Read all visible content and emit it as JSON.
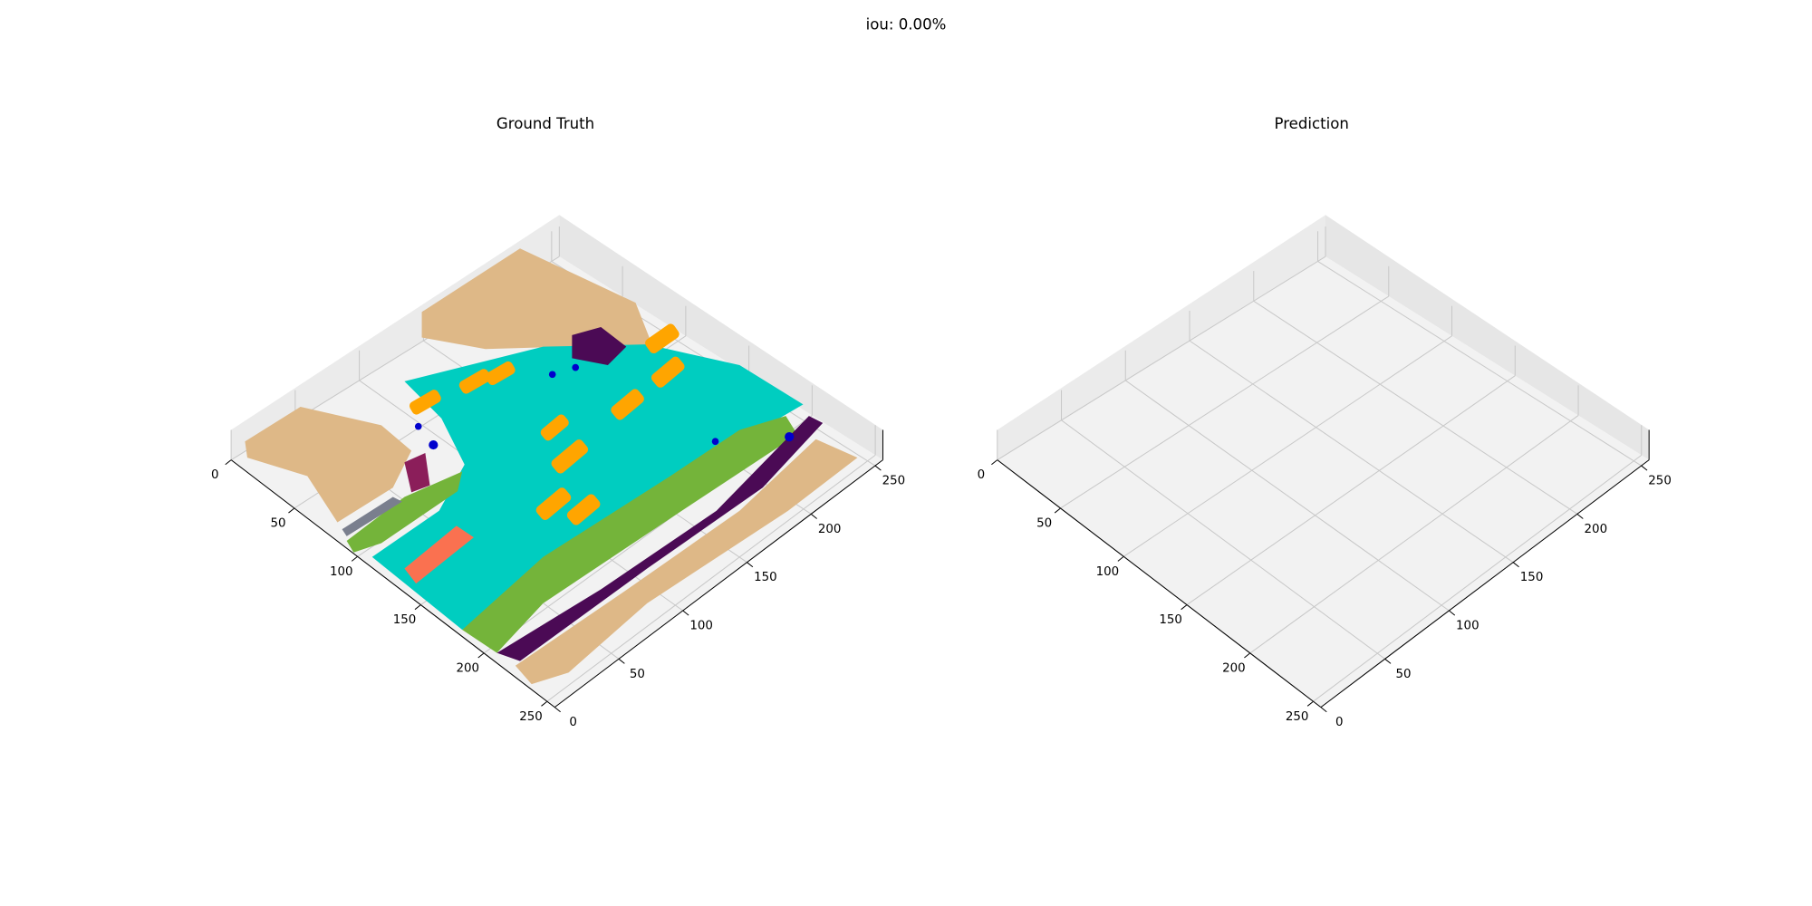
{
  "title": "iou: 0.00%",
  "chart_data": [
    {
      "type": "voxel3d",
      "title": "Ground Truth",
      "xlim": [
        0,
        256
      ],
      "ylim": [
        0,
        256
      ],
      "xticks": [
        0,
        50,
        100,
        150,
        200,
        250
      ],
      "yticks": [
        0,
        50,
        100,
        150,
        200,
        250
      ],
      "grid": true
    },
    {
      "type": "voxel3d",
      "title": "Prediction",
      "xlim": [
        0,
        256
      ],
      "ylim": [
        0,
        256
      ],
      "xticks": [
        0,
        50,
        100,
        150,
        200,
        250
      ],
      "yticks": [
        0,
        50,
        100,
        150,
        200,
        250
      ],
      "grid": true
    }
  ]
}
